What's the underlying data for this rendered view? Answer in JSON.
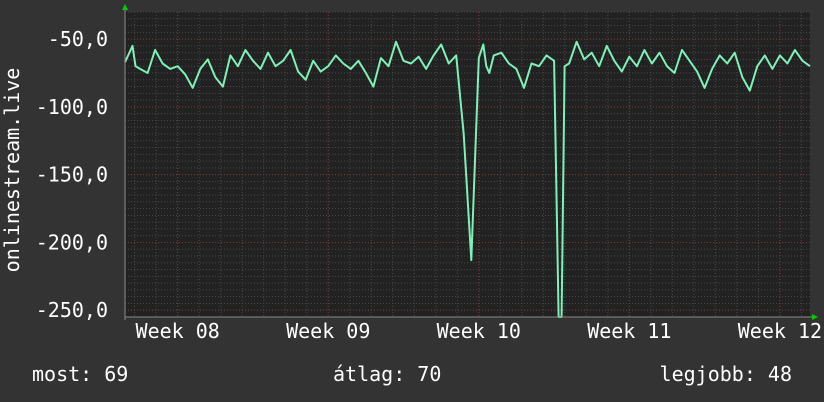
{
  "chart_data": {
    "type": "line",
    "title": "",
    "ylabel": "onlinestream.live",
    "xlabel": "",
    "x_ticks": [
      "Week 08",
      "Week 09",
      "Week 10",
      "Week 11",
      "Week 12"
    ],
    "y_ticks": [
      "-50,0",
      "-100,0",
      "-150,0",
      "-200,0",
      "-250,0"
    ],
    "y_tick_values": [
      -50,
      -100,
      -150,
      -200,
      -250
    ],
    "ylim": [
      -255,
      -30
    ],
    "xlim_weeks": [
      7.65,
      12.2
    ],
    "grid": true,
    "series": [
      {
        "color": "#7ef0b8",
        "x_weeks": [
          7.65,
          7.7,
          7.72,
          7.75,
          7.8,
          7.85,
          7.9,
          7.95,
          8.0,
          8.05,
          8.1,
          8.15,
          8.2,
          8.25,
          8.3,
          8.35,
          8.4,
          8.45,
          8.5,
          8.55,
          8.6,
          8.65,
          8.7,
          8.75,
          8.8,
          8.85,
          8.9,
          8.95,
          9.0,
          9.05,
          9.1,
          9.15,
          9.2,
          9.25,
          9.3,
          9.35,
          9.4,
          9.45,
          9.5,
          9.55,
          9.6,
          9.65,
          9.7,
          9.75,
          9.8,
          9.85,
          9.9,
          9.95,
          10.0,
          10.03,
          10.05,
          10.07,
          10.1,
          10.15,
          10.2,
          10.25,
          10.3,
          10.35,
          10.4,
          10.45,
          10.5,
          10.52,
          10.53,
          10.55,
          10.57,
          10.6,
          10.65,
          10.7,
          10.75,
          10.8,
          10.85,
          10.9,
          10.95,
          11.0,
          11.05,
          11.1,
          11.15,
          11.2,
          11.25,
          11.3,
          11.35,
          11.4,
          11.45,
          11.5,
          11.55,
          11.6,
          11.65,
          11.7,
          11.75,
          11.8,
          11.85,
          11.9,
          11.95,
          12.0,
          12.05,
          12.1,
          12.15,
          12.2
        ],
        "y": [
          -67,
          -55,
          -70,
          -72,
          -75,
          -58,
          -68,
          -72,
          -70,
          -76,
          -86,
          -72,
          -65,
          -78,
          -85,
          -62,
          -70,
          -58,
          -66,
          -72,
          -60,
          -70,
          -66,
          -58,
          -74,
          -80,
          -66,
          -74,
          -70,
          -62,
          -68,
          -72,
          -66,
          -75,
          -85,
          -64,
          -70,
          -52,
          -66,
          -68,
          -63,
          -72,
          -62,
          -54,
          -68,
          -62,
          -120,
          -213,
          -64,
          -54,
          -70,
          -75,
          -62,
          -60,
          -68,
          -72,
          -86,
          -68,
          -70,
          -62,
          -66,
          -190,
          -255,
          -255,
          -70,
          -68,
          -52,
          -65,
          -60,
          -70,
          -55,
          -66,
          -74,
          -63,
          -70,
          -58,
          -68,
          -60,
          -70,
          -75,
          -58,
          -66,
          -74,
          -86,
          -72,
          -62,
          -68,
          -60,
          -78,
          -88,
          -70,
          -62,
          -72,
          -62,
          -68,
          -58,
          -66,
          -70
        ]
      }
    ]
  },
  "footer": {
    "current": "most: 69",
    "average": "átlag: 70",
    "best": "legjobb: 48"
  },
  "colors": {
    "background": "#333333",
    "plot_background": "#222222",
    "grid_minor": "#484848",
    "grid_major": "#7a3838",
    "line": "#7ef0b8",
    "axis_arrow": "#00cc00",
    "text": "#ffffff"
  }
}
